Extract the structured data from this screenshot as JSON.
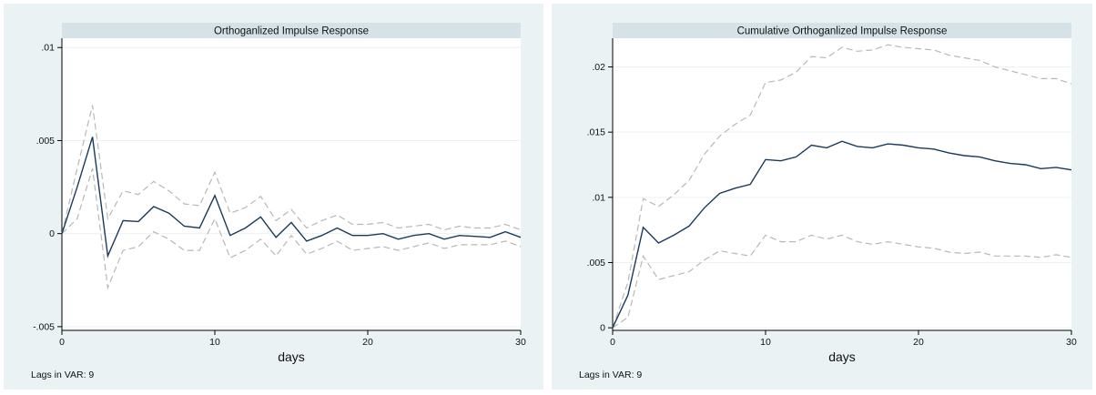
{
  "chart_data": [
    {
      "type": "line",
      "title": "Orthoganlized Impulse Response",
      "xlabel": "days",
      "ylabel": "",
      "note": "Lags in VAR: 9",
      "xlim": [
        0,
        30
      ],
      "ylim": [
        -0.0052,
        0.0105
      ],
      "xticks": [
        0,
        10,
        20,
        30
      ],
      "xtick_labels": [
        "0",
        "10",
        "20",
        "30"
      ],
      "yticks": [
        -0.005,
        0,
        0.005,
        0.01
      ],
      "ytick_labels": [
        "-.005",
        "0",
        ".005",
        ".01"
      ],
      "grid": true,
      "x": [
        0,
        1,
        2,
        3,
        4,
        5,
        6,
        7,
        8,
        9,
        10,
        11,
        12,
        13,
        14,
        15,
        16,
        17,
        18,
        19,
        20,
        21,
        22,
        23,
        24,
        25,
        26,
        27,
        28,
        29,
        30
      ],
      "series": [
        {
          "role": "estimate",
          "color": "#1a3a5c",
          "dashed": false,
          "values": [
            0,
            0.0025,
            0.0052,
            -0.0012,
            0.0007,
            0.00065,
            0.00145,
            0.0011,
            0.0004,
            0.0003,
            0.00205,
            -0.0001,
            0.0003,
            0.0009,
            -0.0002,
            0.0006,
            -0.0004,
            -0.0001,
            0.0003,
            -0.0001,
            -0.0001,
            0.0,
            -0.0003,
            -0.0001,
            0.0,
            -0.0003,
            -0.0001,
            -0.00015,
            -0.0002,
            0.0001,
            -0.0002
          ]
        },
        {
          "role": "upper",
          "color": "#b8b8b8",
          "dashed": true,
          "values": [
            0,
            0.0035,
            0.0069,
            0.0008,
            0.0023,
            0.0021,
            0.0028,
            0.0023,
            0.0016,
            0.0015,
            0.0033,
            0.0011,
            0.0014,
            0.002,
            0.0007,
            0.0013,
            0.0003,
            0.0007,
            0.001,
            0.0005,
            0.0005,
            0.0006,
            0.0003,
            0.0004,
            0.0005,
            0.0002,
            0.0004,
            0.0003,
            0.0003,
            0.0005,
            0.0002
          ]
        },
        {
          "role": "lower",
          "color": "#b8b8b8",
          "dashed": true,
          "values": [
            0,
            0.0008,
            0.0035,
            -0.0029,
            -0.0009,
            -0.0007,
            0.0001,
            -0.0003,
            -0.0009,
            -0.0009,
            0.0008,
            -0.0013,
            -0.0009,
            -0.0003,
            -0.0012,
            -0.0001,
            -0.0011,
            -0.0008,
            -0.0004,
            -0.0009,
            -0.0008,
            -0.0007,
            -0.0009,
            -0.0007,
            -0.0005,
            -0.0008,
            -0.0006,
            -0.0006,
            -0.0006,
            -0.0004,
            -0.0007
          ]
        }
      ]
    },
    {
      "type": "line",
      "title": "Cumulative Orthoganlized Impulse Response",
      "xlabel": "days",
      "ylabel": "",
      "note": "Lags in VAR: 9",
      "xlim": [
        0,
        30
      ],
      "ylim": [
        -0.0002,
        0.0222
      ],
      "xticks": [
        0,
        10,
        20,
        30
      ],
      "xtick_labels": [
        "0",
        "10",
        "20",
        "30"
      ],
      "yticks": [
        0,
        0.005,
        0.01,
        0.015,
        0.02
      ],
      "ytick_labels": [
        "0",
        ".005",
        ".01",
        ".015",
        ".02"
      ],
      "grid": true,
      "x": [
        0,
        1,
        2,
        3,
        4,
        5,
        6,
        7,
        8,
        9,
        10,
        11,
        12,
        13,
        14,
        15,
        16,
        17,
        18,
        19,
        20,
        21,
        22,
        23,
        24,
        25,
        26,
        27,
        28,
        29,
        30
      ],
      "series": [
        {
          "role": "estimate",
          "color": "#1a3a5c",
          "dashed": false,
          "values": [
            0,
            0.0025,
            0.0077,
            0.0065,
            0.0071,
            0.0078,
            0.0092,
            0.0103,
            0.0107,
            0.011,
            0.0129,
            0.0128,
            0.0131,
            0.014,
            0.0138,
            0.0143,
            0.0139,
            0.0138,
            0.0141,
            0.014,
            0.0138,
            0.0137,
            0.0134,
            0.0132,
            0.0131,
            0.0128,
            0.0126,
            0.0125,
            0.0122,
            0.0123,
            0.0121
          ]
        },
        {
          "role": "upper",
          "color": "#b8b8b8",
          "dashed": true,
          "values": [
            0,
            0.0035,
            0.0099,
            0.0093,
            0.0102,
            0.0113,
            0.0133,
            0.0147,
            0.0156,
            0.0163,
            0.0188,
            0.019,
            0.0196,
            0.0208,
            0.0207,
            0.0215,
            0.0212,
            0.0213,
            0.0217,
            0.0215,
            0.0214,
            0.0213,
            0.0209,
            0.0207,
            0.0205,
            0.02,
            0.0197,
            0.0194,
            0.0191,
            0.0191,
            0.0187
          ]
        },
        {
          "role": "lower",
          "color": "#b8b8b8",
          "dashed": true,
          "values": [
            0,
            0.0008,
            0.0055,
            0.0037,
            0.004,
            0.0043,
            0.0052,
            0.0059,
            0.0057,
            0.0055,
            0.0071,
            0.0066,
            0.0066,
            0.0071,
            0.0068,
            0.0071,
            0.0066,
            0.0064,
            0.0066,
            0.0064,
            0.0062,
            0.0061,
            0.0058,
            0.0057,
            0.0058,
            0.0055,
            0.0055,
            0.0055,
            0.0054,
            0.0056,
            0.0054
          ]
        }
      ]
    }
  ]
}
